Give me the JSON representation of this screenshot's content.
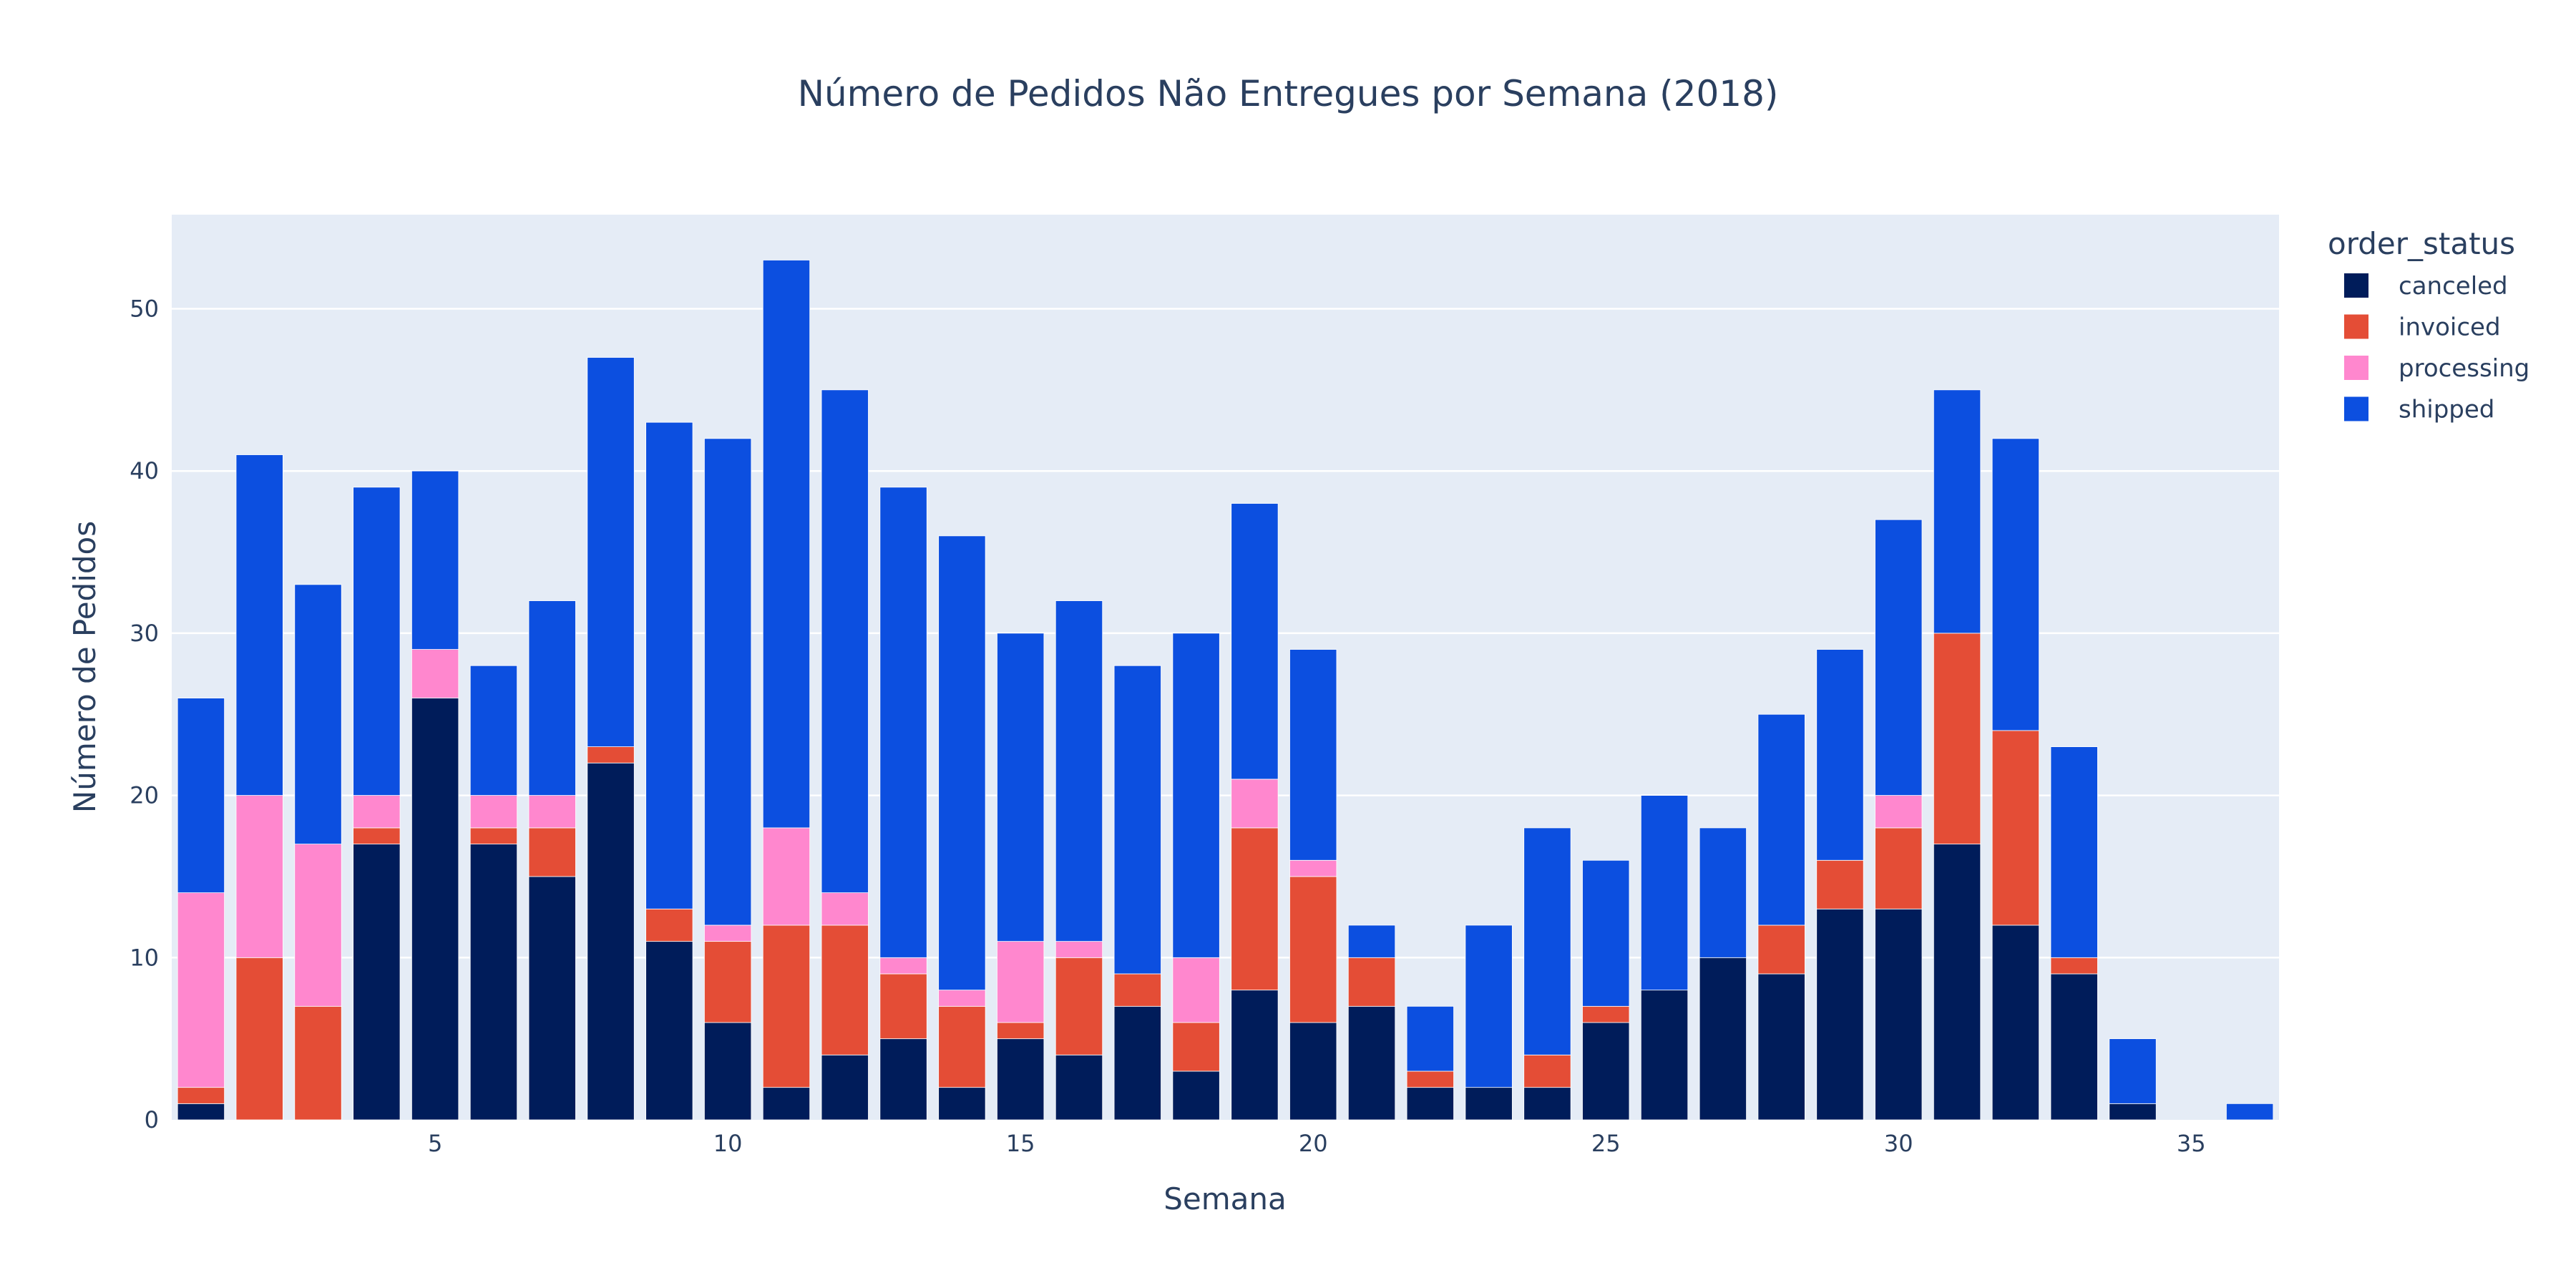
{
  "chart_data": {
    "type": "bar",
    "barmode": "stack",
    "title": "Número de Pedidos Não Entregues por Semana (2018)",
    "xlabel": "Semana",
    "ylabel": "Número de Pedidos",
    "xlim": [
      0.5,
      36.5
    ],
    "ylim": [
      0,
      55.8
    ],
    "x_ticks": [
      5,
      10,
      15,
      20,
      25,
      30,
      35
    ],
    "y_ticks": [
      0,
      10,
      20,
      30,
      40,
      50
    ],
    "grid": true,
    "background": "#e5ecf6",
    "legend": {
      "title": "order_status",
      "position": "right"
    },
    "x": [
      1,
      2,
      3,
      4,
      5,
      6,
      7,
      8,
      9,
      10,
      11,
      12,
      13,
      14,
      15,
      16,
      17,
      18,
      19,
      20,
      21,
      22,
      23,
      24,
      25,
      26,
      27,
      28,
      29,
      30,
      31,
      32,
      33,
      34,
      35,
      36
    ],
    "series": [
      {
        "name": "canceled",
        "color": "#001c5a",
        "values": [
          1,
          0,
          0,
          17,
          26,
          17,
          15,
          22,
          11,
          6,
          2,
          4,
          5,
          2,
          5,
          4,
          7,
          3,
          8,
          6,
          7,
          2,
          2,
          2,
          6,
          8,
          10,
          9,
          13,
          13,
          17,
          12,
          9,
          1,
          0,
          0
        ]
      },
      {
        "name": "invoiced",
        "color": "#e44d36",
        "values": [
          1,
          10,
          7,
          1,
          0,
          1,
          3,
          1,
          2,
          5,
          10,
          8,
          4,
          5,
          1,
          6,
          2,
          3,
          10,
          9,
          3,
          1,
          0,
          2,
          1,
          0,
          0,
          3,
          3,
          5,
          13,
          12,
          1,
          0,
          0,
          0
        ]
      },
      {
        "name": "processing",
        "color": "#ff87ce",
        "values": [
          12,
          10,
          10,
          2,
          3,
          2,
          2,
          0,
          0,
          1,
          6,
          2,
          1,
          1,
          5,
          1,
          0,
          4,
          3,
          1,
          0,
          0,
          0,
          0,
          0,
          0,
          0,
          0,
          0,
          2,
          0,
          0,
          0,
          0,
          0,
          0
        ]
      },
      {
        "name": "shipped",
        "color": "#0c4fe0",
        "values": [
          12,
          21,
          16,
          19,
          11,
          8,
          12,
          24,
          30,
          30,
          35,
          31,
          29,
          28,
          19,
          21,
          19,
          20,
          17,
          13,
          2,
          4,
          10,
          14,
          9,
          12,
          8,
          13,
          13,
          17,
          15,
          18,
          13,
          4,
          0,
          1
        ]
      }
    ]
  }
}
